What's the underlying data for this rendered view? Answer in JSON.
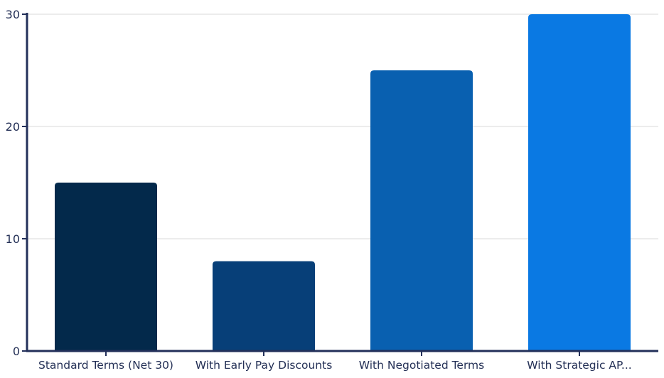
{
  "chart_data": {
    "type": "bar",
    "categories": [
      "Standard Terms (Net 30)",
      "With Early Pay Discounts",
      "With Negotiated Terms",
      "With Strategic AP..."
    ],
    "values": [
      15,
      8,
      25,
      30
    ],
    "bar_colors": [
      "#03294b",
      "#073f78",
      "#0960b0",
      "#0a79e3"
    ],
    "ylim": [
      0,
      30
    ],
    "yticks": [
      0,
      10,
      20,
      30
    ],
    "title": "",
    "xlabel": "",
    "ylabel": "",
    "grid": true,
    "axis_color": "#23305a",
    "grid_color": "#d9d9d9"
  }
}
